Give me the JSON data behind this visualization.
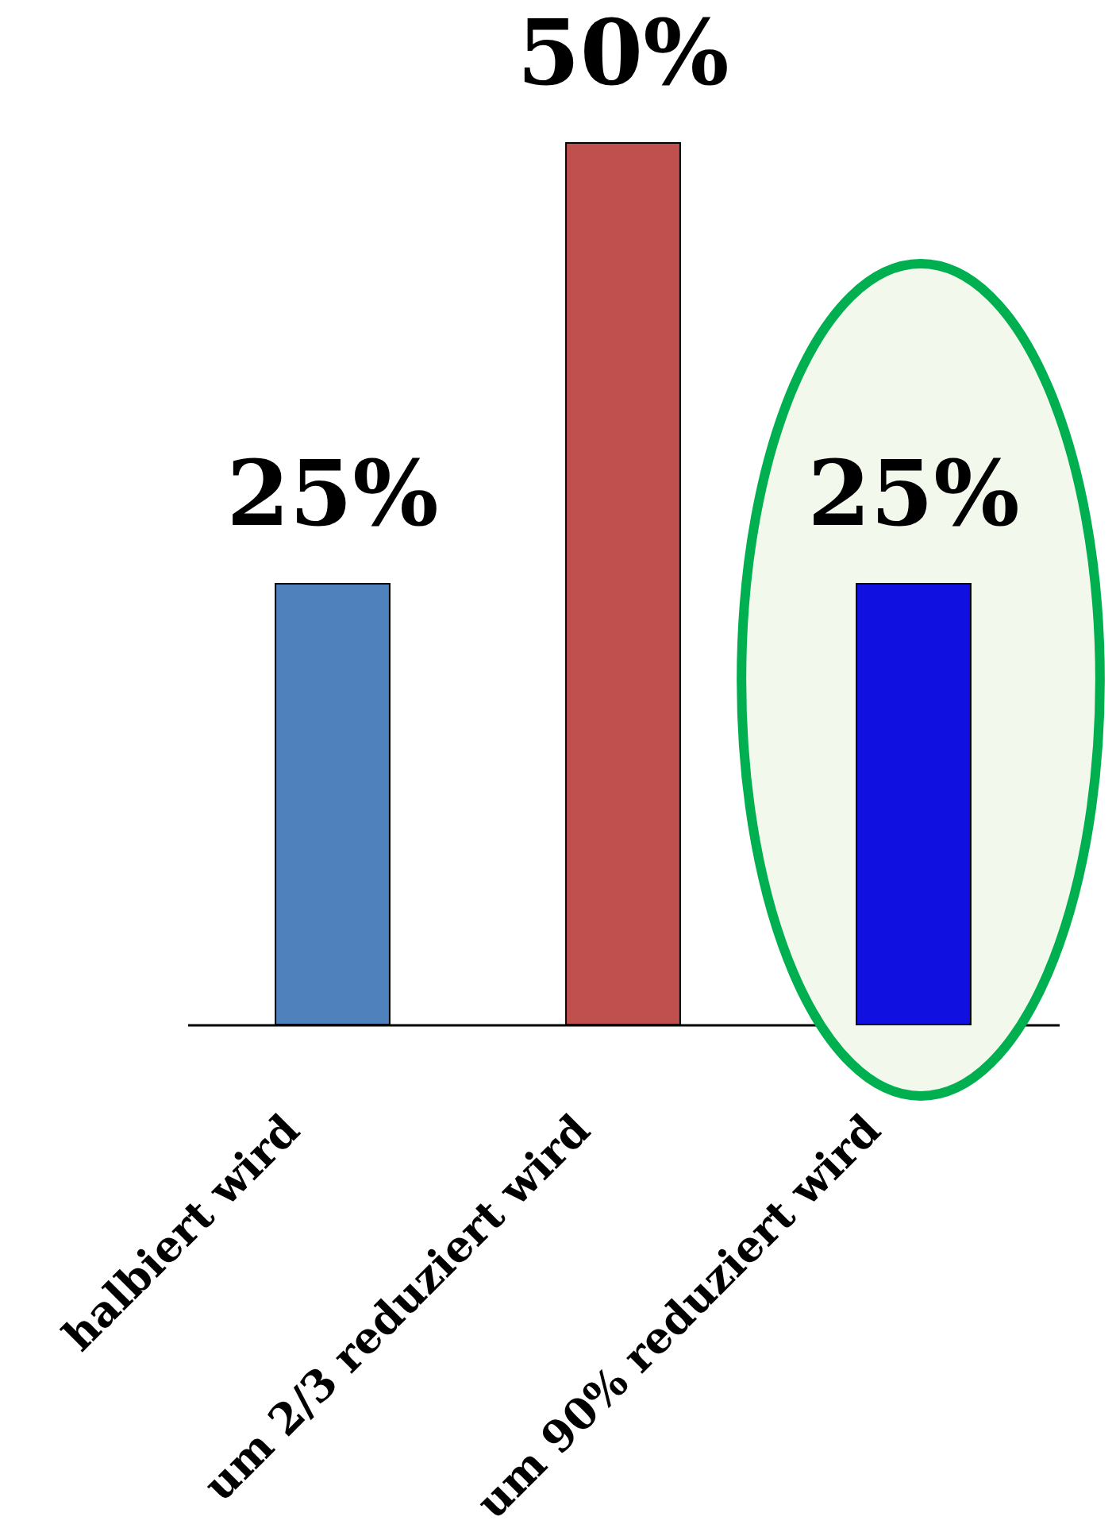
{
  "chart_data": {
    "type": "bar",
    "categories": [
      "halbiert wird",
      "um 2/3 reduziert wird",
      "um 90% reduziert wird"
    ],
    "values": [
      25,
      50,
      25
    ],
    "colors": [
      "#4f81bd",
      "#c0504d",
      "#1010e0"
    ],
    "value_labels": [
      "25%",
      "50%",
      "25%"
    ],
    "tick_labels": "x"
  }
}
